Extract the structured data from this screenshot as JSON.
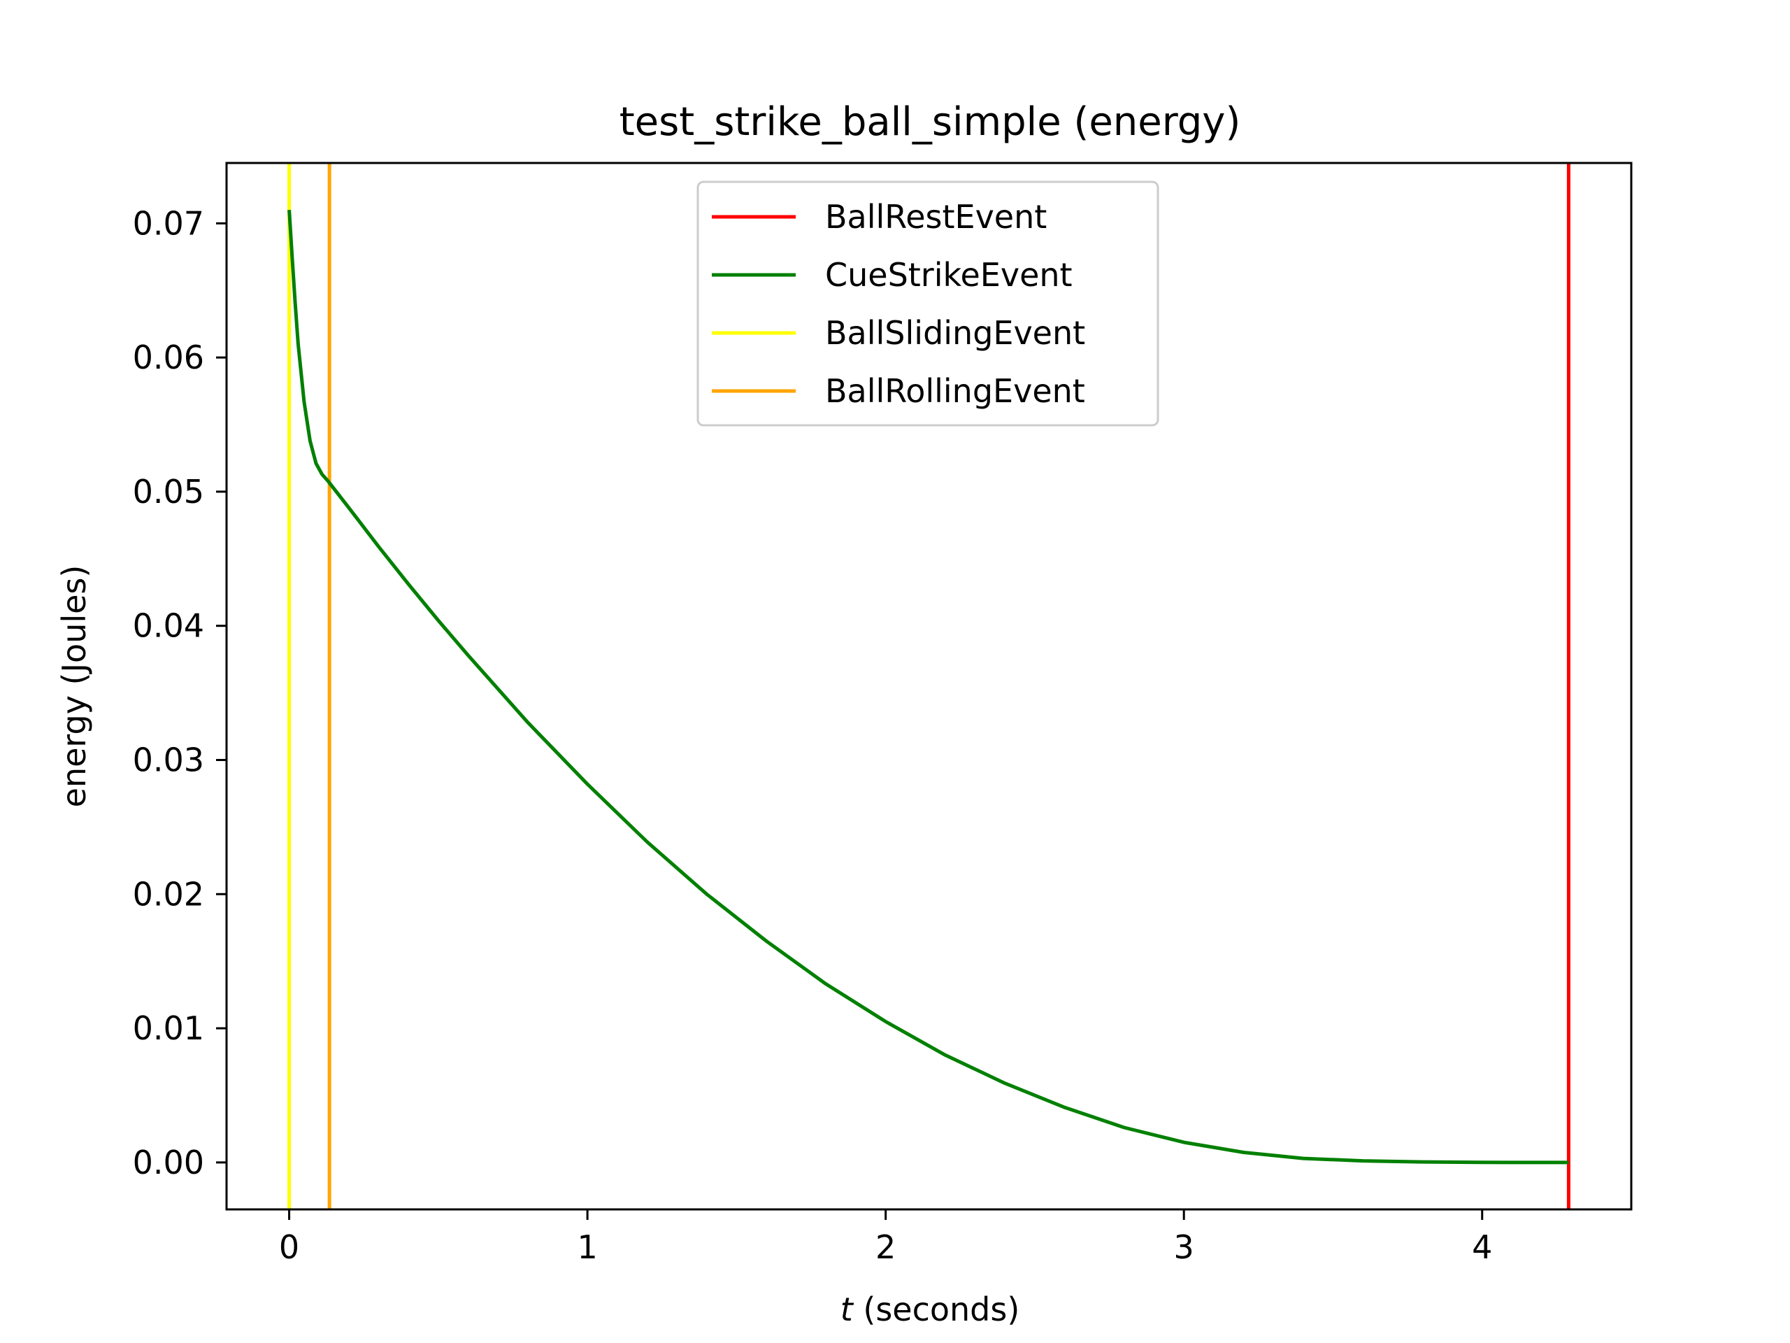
{
  "chart_data": {
    "type": "line",
    "title": "test_strike_ball_simple (energy)",
    "xlabel_var": "t",
    "xlabel_rest": " (seconds)",
    "ylabel": "energy (Joules)",
    "xlim": [
      -0.21,
      4.5
    ],
    "ylim": [
      -0.0035,
      0.0745
    ],
    "xticks": [
      0,
      1,
      2,
      3,
      4
    ],
    "xtick_labels": [
      "0",
      "1",
      "2",
      "3",
      "4"
    ],
    "yticks": [
      0.0,
      0.01,
      0.02,
      0.03,
      0.04,
      0.05,
      0.06,
      0.07
    ],
    "ytick_labels": [
      "0.00",
      "0.01",
      "0.02",
      "0.03",
      "0.04",
      "0.05",
      "0.06",
      "0.07"
    ],
    "grid": false,
    "legend_position": "upper center",
    "series": [
      {
        "name": "energy",
        "color": "#008000",
        "x": [
          0.0,
          0.01,
          0.02,
          0.03,
          0.05,
          0.07,
          0.09,
          0.11,
          0.13,
          0.2,
          0.3,
          0.4,
          0.5,
          0.6,
          0.8,
          1.0,
          1.2,
          1.4,
          1.6,
          1.8,
          2.0,
          2.2,
          2.4,
          2.6,
          2.8,
          3.0,
          3.2,
          3.4,
          3.6,
          3.8,
          4.0,
          4.1,
          4.2,
          4.29
        ],
        "y": [
          0.071,
          0.0675,
          0.0641,
          0.061,
          0.0567,
          0.0538,
          0.0521,
          0.0513,
          0.0508,
          0.0488,
          0.0459,
          0.0431,
          0.0404,
          0.0378,
          0.0328,
          0.0282,
          0.0239,
          0.02,
          0.0165,
          0.0133,
          0.0105,
          0.008,
          0.0059,
          0.0041,
          0.0026,
          0.0015,
          0.00075,
          0.0003,
          0.00012,
          4e-05,
          1e-05,
          0.0,
          0.0,
          0.0
        ]
      }
    ],
    "events": [
      {
        "name": "BallRestEvent",
        "color": "#ff0000",
        "x": 4.29
      },
      {
        "name": "CueStrikeEvent",
        "color": "#008000",
        "x": null
      },
      {
        "name": "BallSlidingEvent",
        "color": "#ffff00",
        "x": 0.0
      },
      {
        "name": "BallRollingEvent",
        "color": "#ffa500",
        "x": 0.135
      }
    ],
    "legend": [
      "BallRestEvent",
      "CueStrikeEvent",
      "BallSlidingEvent",
      "BallRollingEvent"
    ]
  }
}
